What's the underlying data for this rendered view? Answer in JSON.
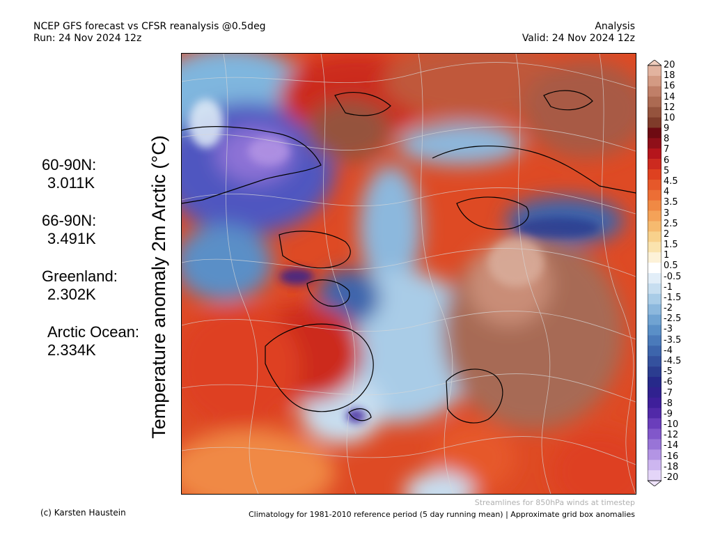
{
  "header": {
    "title": "NCEP GFS forecast vs CFSR reanalysis @0.5deg",
    "run": "Run: 24 Nov 2024 12z",
    "mode": "Analysis",
    "valid": "Valid: 24 Nov 2024 12z"
  },
  "axis_label": "Temperature anomaly 2m Arctic (°C)",
  "stats": [
    {
      "name": "60-90N:",
      "value": "3.011K"
    },
    {
      "name": "66-90N:",
      "value": "3.491K"
    },
    {
      "name": "Greenland:",
      "value": "2.302K"
    },
    {
      "name": "Arctic Ocean:",
      "value": "2.334K"
    }
  ],
  "colorbar": {
    "labels": [
      "20",
      "18",
      "16",
      "14",
      "12",
      "10",
      "9",
      "8",
      "7",
      "6",
      "5",
      "4.5",
      "4",
      "3.5",
      "3",
      "2.5",
      "2",
      "1.5",
      "1",
      "0.5",
      "-0.5",
      "-1",
      "-1.5",
      "-2",
      "-2.5",
      "-3",
      "-3.5",
      "-4",
      "-4.5",
      "-5",
      "-6",
      "-7",
      "-8",
      "-9",
      "-10",
      "-12",
      "-14",
      "-16",
      "-18",
      "-20"
    ],
    "colors": [
      "#e2b39f",
      "#d39a83",
      "#c07f68",
      "#ac6a52",
      "#95533d",
      "#7f3b2a",
      "#6e0a12",
      "#8f0f19",
      "#b5151c",
      "#cc2a1f",
      "#de4120",
      "#e6582a",
      "#ec6e35",
      "#f08944",
      "#f4a258",
      "#f6ba6f",
      "#f8d18c",
      "#fae3ae",
      "#fdf2d8",
      "#ffffff",
      "#e2eef8",
      "#c7def0",
      "#a9cce7",
      "#8cb8dd",
      "#70a3d2",
      "#5a8fc7",
      "#4a7aba",
      "#3d65ac",
      "#34519e",
      "#2b3d90",
      "#26298a",
      "#30218f",
      "#3e1f9a",
      "#5129a8",
      "#6a3ebb",
      "#8157ca",
      "#9874d7",
      "#b394e4",
      "#cdb6f0",
      "#e4d5f8"
    ],
    "top_arrow_color": "#f0cdbd",
    "bottom_arrow_color": "#efe3fb"
  },
  "footer": {
    "copyright": "(c) Karsten Haustein",
    "streamlines": "Streamlines for 850hPa winds at timestep",
    "climatology": "Climatology for 1981-2010 reference period (5 day running mean) | Approximate grid box anomalies"
  },
  "map": {
    "land_outline_color": "#000000",
    "streamline_color": "#d8d8d8"
  }
}
